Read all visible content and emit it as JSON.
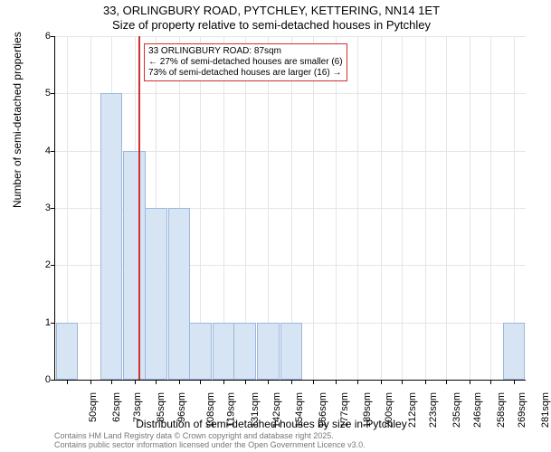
{
  "title_main": "33, ORLINGBURY ROAD, PYTCHLEY, KETTERING, NN14 1ET",
  "title_sub": "Size of property relative to semi-detached houses in Pytchley",
  "ylabel": "Number of semi-detached properties",
  "xlabel": "Distribution of semi-detached houses by size in Pytchley",
  "footer_line1": "Contains HM Land Registry data © Crown copyright and database right 2025.",
  "footer_line2": "Contains public sector information licensed under the Open Government Licence v3.0.",
  "annotation": {
    "line1": "33 ORLINGBURY ROAD: 87sqm",
    "line2": "← 27% of semi-detached houses are smaller (6)",
    "line3": "73% of semi-detached houses are larger (16) →"
  },
  "chart": {
    "type": "histogram",
    "xlim": [
      44,
      287
    ],
    "ylim": [
      0,
      6
    ],
    "ytick_step": 1,
    "x_categories": [
      "50sqm",
      "62sqm",
      "73sqm",
      "85sqm",
      "96sqm",
      "108sqm",
      "119sqm",
      "131sqm",
      "142sqm",
      "154sqm",
      "166sqm",
      "177sqm",
      "189sqm",
      "200sqm",
      "212sqm",
      "223sqm",
      "235sqm",
      "246sqm",
      "258sqm",
      "269sqm",
      "281sqm"
    ],
    "x_tick_values": [
      50,
      62,
      73,
      85,
      96,
      108,
      119,
      131,
      142,
      154,
      166,
      177,
      189,
      200,
      212,
      223,
      235,
      246,
      258,
      269,
      281
    ],
    "bars": [
      {
        "x_center": 50,
        "width": 11.5,
        "value": 1
      },
      {
        "x_center": 73,
        "width": 11.5,
        "value": 5
      },
      {
        "x_center": 85,
        "width": 11.5,
        "value": 4
      },
      {
        "x_center": 96,
        "width": 11.5,
        "value": 3
      },
      {
        "x_center": 108,
        "width": 11.5,
        "value": 3
      },
      {
        "x_center": 119,
        "width": 11.5,
        "value": 1
      },
      {
        "x_center": 131,
        "width": 11.5,
        "value": 1
      },
      {
        "x_center": 142,
        "width": 11.5,
        "value": 1
      },
      {
        "x_center": 154,
        "width": 11.5,
        "value": 1
      },
      {
        "x_center": 166,
        "width": 11.5,
        "value": 1
      },
      {
        "x_center": 281,
        "width": 11.5,
        "value": 1
      }
    ],
    "marker_x": 87,
    "bar_fill": "#d7e4f4",
    "bar_border": "#9bb8db",
    "marker_color": "#d03030",
    "grid_color": "#e5e5e5",
    "background_color": "#ffffff",
    "title_fontsize": 13,
    "label_fontsize": 12,
    "tick_fontsize": 11,
    "annotation_fontsize": 10
  }
}
